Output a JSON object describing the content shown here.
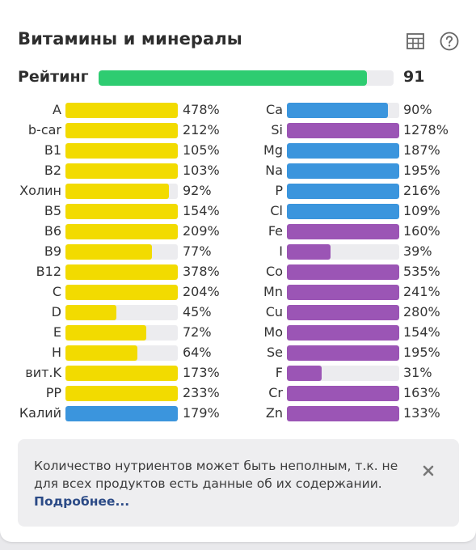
{
  "header": {
    "title": "Витамины и минералы",
    "table_icon": "table-icon",
    "help_icon": "help-icon"
  },
  "rating": {
    "label": "Рейтинг",
    "value": "91",
    "fill_fraction": 0.91,
    "color": "#2ecc71"
  },
  "colors": {
    "vitamin": "#f2db00",
    "mineral_blue": "#3b95dd",
    "mineral_purple": "#9b55b5",
    "track": "#ececef"
  },
  "left_column": [
    {
      "label": "A",
      "value": "478%",
      "fill": 1.0,
      "color": "#f2db00"
    },
    {
      "label": "b-car",
      "value": "212%",
      "fill": 1.0,
      "color": "#f2db00"
    },
    {
      "label": "B1",
      "value": "105%",
      "fill": 1.0,
      "color": "#f2db00"
    },
    {
      "label": "B2",
      "value": "103%",
      "fill": 1.0,
      "color": "#f2db00"
    },
    {
      "label": "Холин",
      "value": "92%",
      "fill": 0.92,
      "color": "#f2db00"
    },
    {
      "label": "B5",
      "value": "154%",
      "fill": 1.0,
      "color": "#f2db00"
    },
    {
      "label": "B6",
      "value": "209%",
      "fill": 1.0,
      "color": "#f2db00"
    },
    {
      "label": "B9",
      "value": "77%",
      "fill": 0.77,
      "color": "#f2db00"
    },
    {
      "label": "B12",
      "value": "378%",
      "fill": 1.0,
      "color": "#f2db00"
    },
    {
      "label": "C",
      "value": "204%",
      "fill": 1.0,
      "color": "#f2db00"
    },
    {
      "label": "D",
      "value": "45%",
      "fill": 0.45,
      "color": "#f2db00"
    },
    {
      "label": "E",
      "value": "72%",
      "fill": 0.72,
      "color": "#f2db00"
    },
    {
      "label": "H",
      "value": "64%",
      "fill": 0.64,
      "color": "#f2db00"
    },
    {
      "label": "вит.K",
      "value": "173%",
      "fill": 1.0,
      "color": "#f2db00"
    },
    {
      "label": "PP",
      "value": "233%",
      "fill": 1.0,
      "color": "#f2db00"
    },
    {
      "label": "Калий",
      "value": "179%",
      "fill": 1.0,
      "color": "#3b95dd"
    }
  ],
  "right_column": [
    {
      "label": "Ca",
      "value": "90%",
      "fill": 0.9,
      "color": "#3b95dd"
    },
    {
      "label": "Si",
      "value": "1278%",
      "fill": 1.0,
      "color": "#9b55b5"
    },
    {
      "label": "Mg",
      "value": "187%",
      "fill": 1.0,
      "color": "#3b95dd"
    },
    {
      "label": "Na",
      "value": "195%",
      "fill": 1.0,
      "color": "#3b95dd"
    },
    {
      "label": "P",
      "value": "216%",
      "fill": 1.0,
      "color": "#3b95dd"
    },
    {
      "label": "Cl",
      "value": "109%",
      "fill": 1.0,
      "color": "#3b95dd"
    },
    {
      "label": "Fe",
      "value": "160%",
      "fill": 1.0,
      "color": "#9b55b5"
    },
    {
      "label": "I",
      "value": "39%",
      "fill": 0.39,
      "color": "#9b55b5"
    },
    {
      "label": "Co",
      "value": "535%",
      "fill": 1.0,
      "color": "#9b55b5"
    },
    {
      "label": "Mn",
      "value": "241%",
      "fill": 1.0,
      "color": "#9b55b5"
    },
    {
      "label": "Cu",
      "value": "280%",
      "fill": 1.0,
      "color": "#9b55b5"
    },
    {
      "label": "Mo",
      "value": "154%",
      "fill": 1.0,
      "color": "#9b55b5"
    },
    {
      "label": "Se",
      "value": "195%",
      "fill": 1.0,
      "color": "#9b55b5"
    },
    {
      "label": "F",
      "value": "31%",
      "fill": 0.31,
      "color": "#9b55b5"
    },
    {
      "label": "Cr",
      "value": "163%",
      "fill": 1.0,
      "color": "#9b55b5"
    },
    {
      "label": "Zn",
      "value": "133%",
      "fill": 1.0,
      "color": "#9b55b5"
    }
  ],
  "notice": {
    "text": "Количество нутриентов может быть неполным, т.к. не для всех продуктов есть данные об их содержании.",
    "link": "Подробнее...",
    "close_icon": "close-icon"
  }
}
